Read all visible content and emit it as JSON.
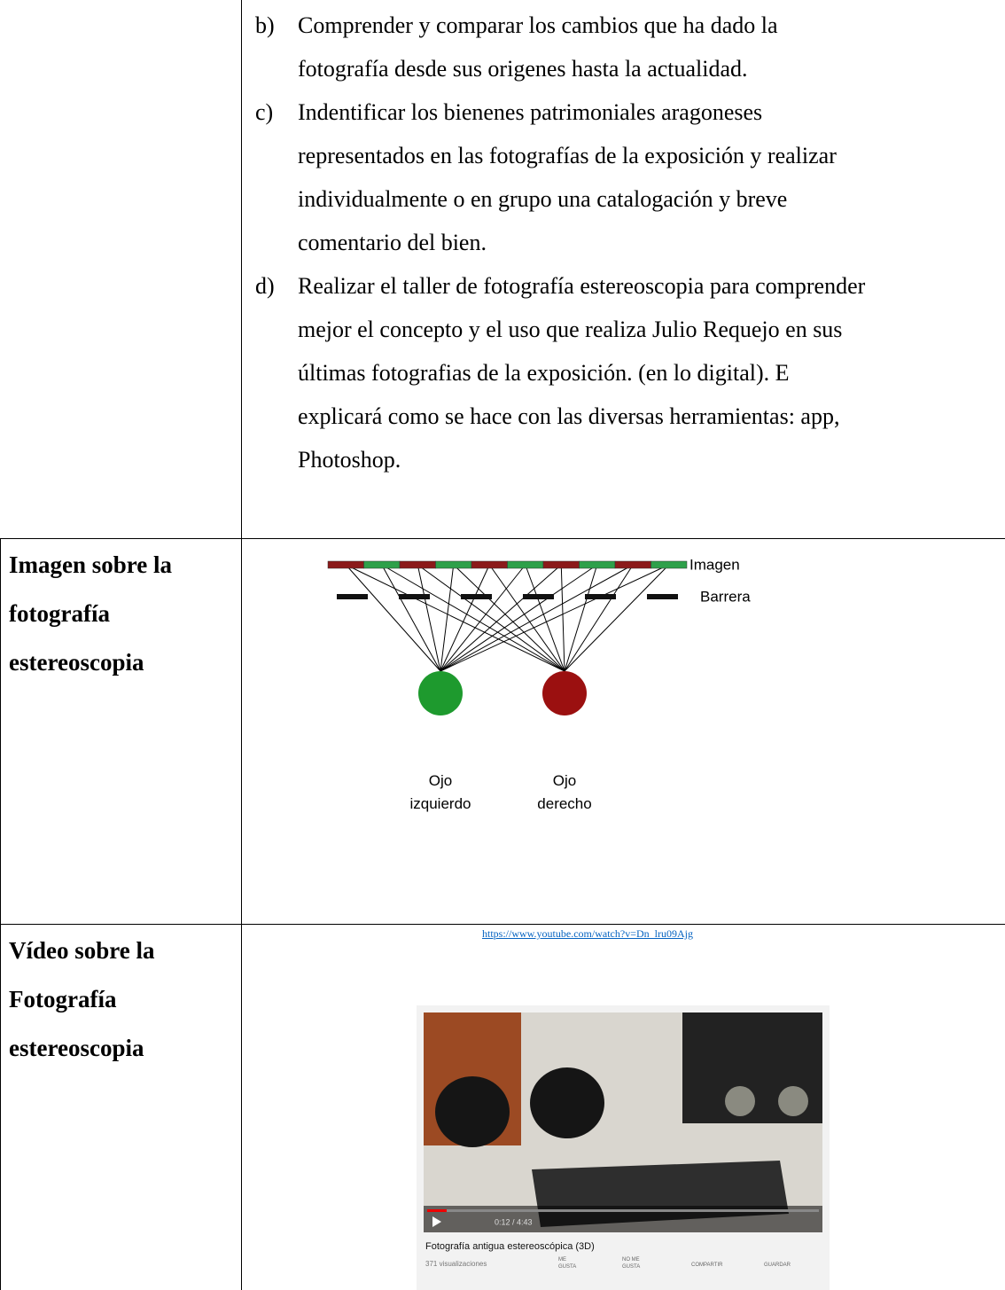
{
  "list": {
    "items": [
      {
        "marker": "b)",
        "lines": [
          "Comprender y comparar los cambios que ha dado la",
          "fotografía desde sus origenes hasta la actualidad."
        ]
      },
      {
        "marker": "c)",
        "lines": [
          "Indentificar los bienenes patrimoniales aragoneses",
          "representados en las fotografías de la exposición y realizar",
          "individualmente o en grupo una catalogación y breve",
          "comentario del bien."
        ]
      },
      {
        "marker": "d)",
        "lines": [
          "Realizar el taller de fotografía estereoscopia para comprender",
          "mejor el concepto y el uso que realiza Julio Requejo en sus",
          "últimas fotografias de la exposición. (en lo digital). E",
          "explicará como se hace con las diversas herramientas: app,",
          "Photoshop."
        ]
      }
    ]
  },
  "rows": [
    {
      "label": [
        "Imagen sobre la",
        "fotografía",
        "estereoscopia"
      ],
      "diagram": {
        "image": "Imagen",
        "barrier": "Barrera",
        "left_eye": [
          "Ojo",
          "izquierdo"
        ],
        "right_eye": [
          "Ojo",
          "derecho"
        ]
      }
    },
    {
      "label": [
        "Vídeo sobre la",
        "Fotografía",
        "estereoscopia"
      ],
      "link": "https://www.youtube.com/watch?v=Dn_lru09Ajg",
      "video": {
        "time": "0:12 / 4:43",
        "title": "Fotografía antigua estereoscópica (3D)",
        "views": "371 visualizaciones",
        "like": [
          "ME",
          "GUSTA"
        ],
        "dislike": [
          "NO ME",
          "GUSTA"
        ],
        "share": "COMPARTIR",
        "save": "GUARDAR"
      }
    }
  ]
}
